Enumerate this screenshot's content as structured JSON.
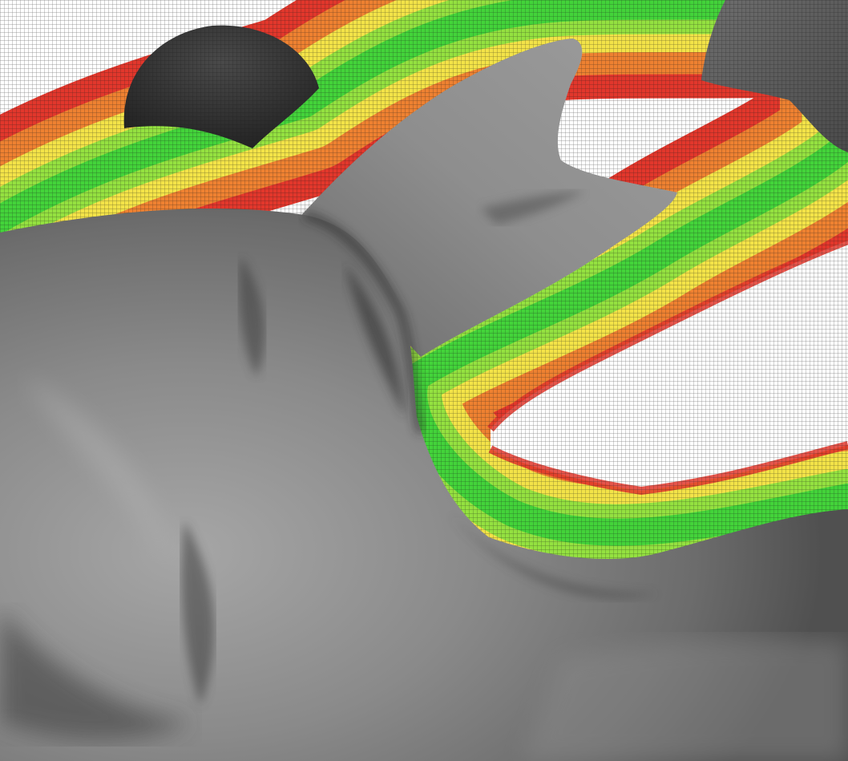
{
  "scene": {
    "colors": {
      "background": "#ffffff",
      "grid_line": "#1a1a1a",
      "field_far": "#e2372c",
      "field_mid": "#f2e84a",
      "field_near": "#3ed23a",
      "surface_light": "#a8a8a8",
      "surface_mid": "#7d7d7d",
      "surface_dark": "#2e2e2e",
      "capsule_left": "#333333",
      "capsule_right": "#606060"
    },
    "objects": [
      {
        "name": "grid-background",
        "kind": "wireframe mesh grid"
      },
      {
        "name": "distance-field-band",
        "kind": "red-yellow-green color gradient band"
      },
      {
        "name": "capsule-left",
        "kind": "dark gray rounded solid"
      },
      {
        "name": "capsule-right",
        "kind": "mid gray rounded solid"
      },
      {
        "name": "surface-body",
        "kind": "shaded gray 3D scanned surface"
      },
      {
        "name": "surface-ear",
        "kind": "shaded gray pointed protrusion"
      }
    ]
  }
}
